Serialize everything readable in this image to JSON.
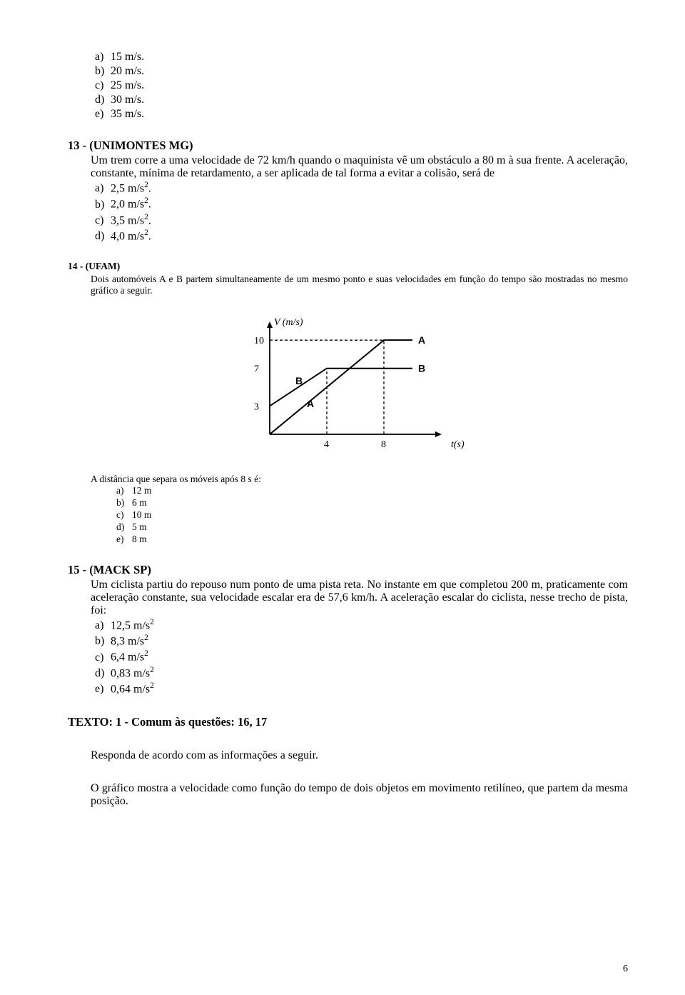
{
  "q12_options": {
    "a": "15 m/s.",
    "b": "20 m/s.",
    "c": "25 m/s.",
    "d": "30 m/s.",
    "e": "35 m/s."
  },
  "q13": {
    "header": "13 - (UNIMONTES MG)",
    "body": "Um trem corre a uma velocidade de 72 km/h quando o maquinista vê um obstáculo a 80 m à sua frente. A aceleração, constante, mínima de retardamento, a ser aplicada de tal forma a evitar a colisão, será de",
    "options": {
      "a": "2,5 m/s",
      "b": "2,0 m/s",
      "c": "3,5 m/s",
      "d": "4,0 m/s"
    }
  },
  "q14": {
    "header": "14 - (UFAM)",
    "body": "Dois automóveis A e B partem simultaneamente de um mesmo ponto e suas velocidades em função do tempo são mostradas  no mesmo gráfico a seguir.",
    "chart": {
      "y_label": "V (m/s)",
      "x_label": "t(s)",
      "y_ticks": [
        3,
        7,
        10
      ],
      "x_ticks": [
        4,
        8
      ],
      "line_color": "#000000",
      "dash_pattern": "4,3",
      "A_points": [
        [
          0,
          0
        ],
        [
          8,
          10
        ],
        [
          10,
          10
        ]
      ],
      "B_points": [
        [
          0,
          3
        ],
        [
          4,
          7
        ],
        [
          10,
          7
        ]
      ],
      "series_labels": {
        "A": "A",
        "B": "B"
      }
    },
    "dist_lead": "A distância que separa os móveis após 8 s é:",
    "options": {
      "a": "12 m",
      "b": "6 m",
      "c": "10 m",
      "d": "5 m",
      "e": "8 m"
    }
  },
  "q15": {
    "header": "15 - (MACK SP)",
    "body": "Um ciclista partiu do repouso num ponto de uma pista reta. No instante em que completou 200 m, praticamente com aceleração constante, sua velocidade escalar era de 57,6 km/h. A aceleração escalar do ciclista, nesse trecho de pista, foi:",
    "options": {
      "a": "12,5 m/s",
      "b": "8,3 m/s",
      "c": "6,4 m/s",
      "d": "0,83 m/s",
      "e": "0,64 m/s"
    }
  },
  "texto": {
    "header": "TEXTO: 1 - Comum às questões: 16, 17",
    "p1": "Responda de acordo com as informações a seguir.",
    "p2": "O gráfico mostra a velocidade como função do tempo de dois objetos em movimento retilíneo, que  partem da mesma posição."
  },
  "page_number": "6"
}
